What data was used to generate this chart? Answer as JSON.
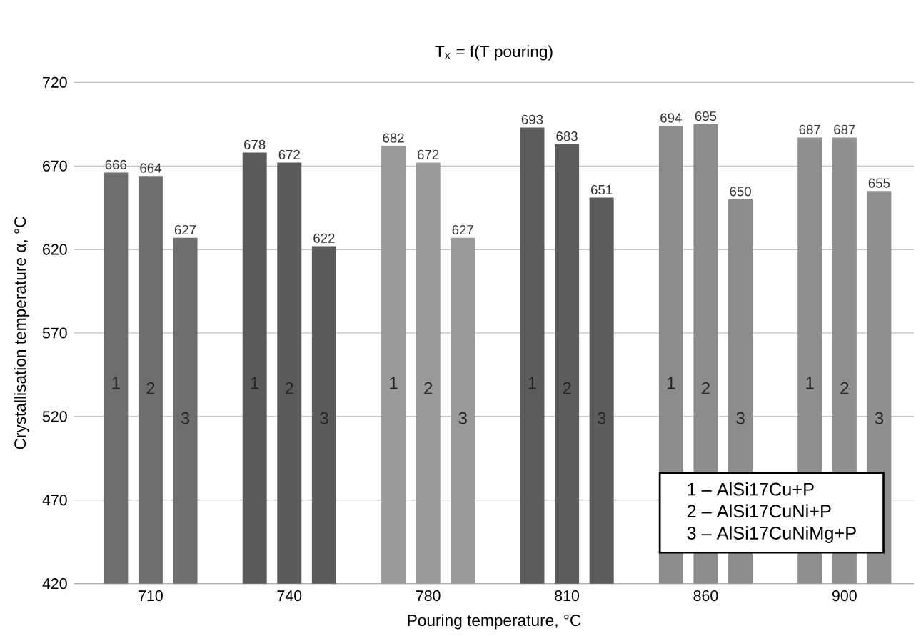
{
  "chart_data": {
    "type": "bar",
    "title": "T$_{x}$ = f(T pouring)",
    "xlabel": "Pouring temperature, °C",
    "ylabel": "Crystallisation temperature α, °C",
    "categories": [
      "710",
      "740",
      "780",
      "810",
      "860",
      "900"
    ],
    "series": [
      {
        "name": "1",
        "colors": [
          "#6e6e6e",
          "#5a5a5a",
          "#9a9a9a",
          "#5c5c5c",
          "#8c8c8c",
          "#8f8f8f"
        ],
        "values": [
          666,
          678,
          682,
          693,
          694,
          687
        ]
      },
      {
        "name": "2",
        "colors": [
          "#6e6e6e",
          "#5a5a5a",
          "#9a9a9a",
          "#5c5c5c",
          "#8c8c8c",
          "#8f8f8f"
        ],
        "values": [
          664,
          672,
          672,
          683,
          695,
          687
        ]
      },
      {
        "name": "3",
        "colors": [
          "#6e6e6e",
          "#5a5a5a",
          "#9a9a9a",
          "#5c5c5c",
          "#8c8c8c",
          "#8f8f8f"
        ],
        "values": [
          627,
          622,
          627,
          651,
          650,
          655
        ]
      }
    ],
    "ylim": [
      420,
      720
    ],
    "yticks": [
      420,
      470,
      520,
      570,
      620,
      670,
      720
    ],
    "grid": "y",
    "legend": false,
    "data_labels": true,
    "annotations": [
      "1 – AlSi17Cu+P",
      "2 – AlSi17CuNi+P",
      "3 – AlSi17CuNiMg+P"
    ]
  }
}
